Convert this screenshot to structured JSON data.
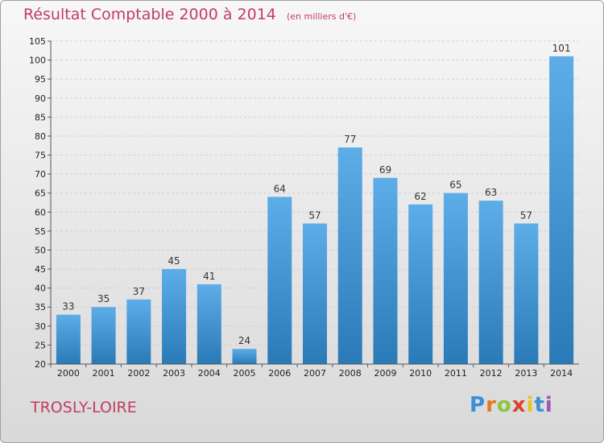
{
  "chart_data": {
    "type": "bar",
    "title": "Résultat Comptable 2000 à 2014",
    "subtitle": "(en milliers d'€)",
    "categories": [
      "2000",
      "2001",
      "2002",
      "2003",
      "2004",
      "2005",
      "2006",
      "2007",
      "2008",
      "2009",
      "2010",
      "2011",
      "2012",
      "2013",
      "2014"
    ],
    "values": [
      33,
      35,
      37,
      45,
      41,
      24,
      64,
      57,
      77,
      69,
      62,
      65,
      63,
      57,
      101
    ],
    "ylim": [
      20,
      105
    ],
    "yticks": [
      20,
      25,
      30,
      35,
      40,
      45,
      50,
      55,
      60,
      65,
      70,
      75,
      80,
      85,
      90,
      95,
      100,
      105
    ],
    "xlabel": "",
    "ylabel": "",
    "grid": true,
    "bar_color_light": "#5dade8",
    "bar_color_dark": "#2a7ab8"
  },
  "footer": {
    "place": "TROSLY-LOIRE",
    "logo_letters": [
      "P",
      "r",
      "o",
      "x",
      "i",
      "t",
      "i"
    ],
    "logo_colors": [
      "#3a8fd6",
      "#e07b20",
      "#8cc63f",
      "#d9402c",
      "#e6c323",
      "#3a8fd6",
      "#9b59b6"
    ]
  },
  "colors": {
    "accent": "#c23d62",
    "grid": "#cfcfcf",
    "axis": "#555555"
  }
}
